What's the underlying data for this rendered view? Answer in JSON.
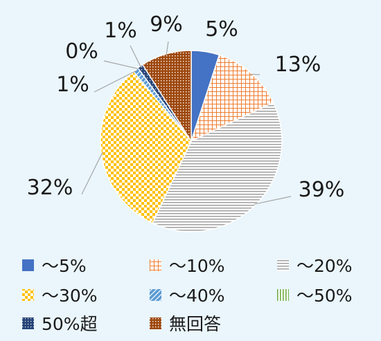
{
  "chart_data": {
    "type": "pie",
    "title": "",
    "categories": [
      "～5%",
      "～10%",
      "～20%",
      "～30%",
      "～40%",
      "～50%",
      "50%超",
      "無回答"
    ],
    "values": [
      5,
      13,
      39,
      32,
      1,
      0,
      1,
      9
    ],
    "data_labels": [
      "5%",
      "13%",
      "39%",
      "32%",
      "1%",
      "0%",
      "1%",
      "9%"
    ],
    "colors": [
      "#4472c4",
      "#ed7d31",
      "#a5a5a5",
      "#ffc000",
      "#5b9bd5",
      "#70ad47",
      "#264478",
      "#9e480e"
    ],
    "patterns": [
      "solid",
      "grid",
      "horizontal",
      "checker",
      "diagonal",
      "vertical",
      "dots",
      "dense-grid"
    ],
    "legend": {
      "position": "bottom",
      "entries": [
        "～5%",
        "～10%",
        "～20%",
        "～30%",
        "～40%",
        "～50%",
        "50%超",
        "無回答"
      ]
    }
  }
}
